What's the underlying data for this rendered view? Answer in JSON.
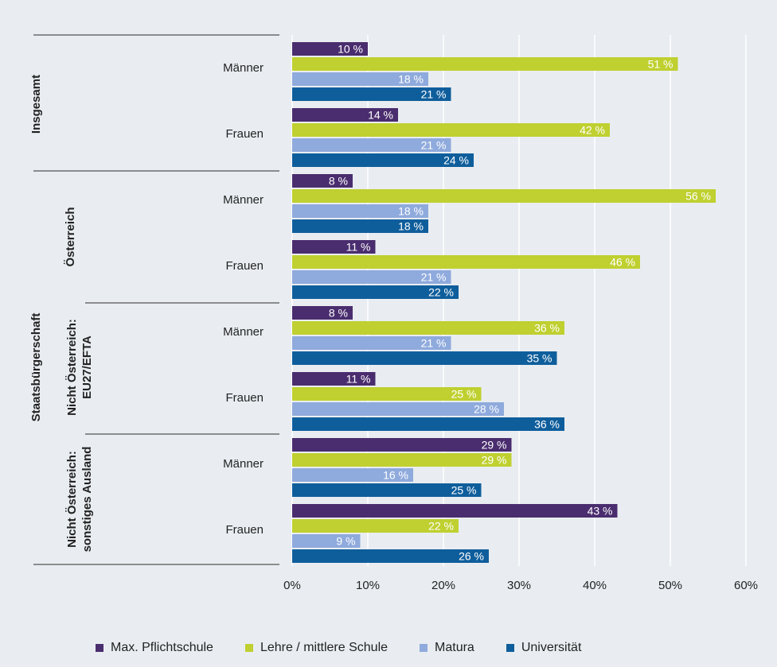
{
  "chart_data": {
    "type": "bar",
    "orientation": "horizontal",
    "title": "",
    "xlabel": "",
    "ylabel": "",
    "xlim": [
      0,
      60
    ],
    "x_ticks": [
      "0%",
      "10%",
      "20%",
      "30%",
      "40%",
      "50%",
      "60%"
    ],
    "grid": true,
    "legend_position": "bottom",
    "outer_group_label": "Staatsbürgerschaft",
    "groups": [
      {
        "label": "Insgesamt"
      },
      {
        "label": "Österreich"
      },
      {
        "label": "Nicht Österreich: EU27/EFTA",
        "label_lines": [
          "Nicht Österreich:",
          "EU27/EFTA"
        ]
      },
      {
        "label": "Nicht Österreich: sonstiges Ausland",
        "label_lines": [
          "Nicht Österreich:",
          "sonstiges Ausland"
        ]
      }
    ],
    "categories": [
      "Insgesamt – Männer",
      "Insgesamt – Frauen",
      "Österreich – Männer",
      "Österreich – Frauen",
      "Nicht Österreich: EU27/EFTA – Männer",
      "Nicht Österreich: EU27/EFTA – Frauen",
      "Nicht Österreich: sonstiges Ausland – Männer",
      "Nicht Österreich: sonstiges Ausland – Frauen"
    ],
    "category_labels": [
      "Männer",
      "Frauen",
      "Männer",
      "Frauen",
      "Männer",
      "Frauen",
      "Männer",
      "Frauen"
    ],
    "series": [
      {
        "name": "Max. Pflichtschule",
        "color": "#4a2d6e",
        "values": [
          10,
          14,
          8,
          11,
          8,
          11,
          29,
          43
        ],
        "labels": [
          "10 %",
          "14 %",
          "8 %",
          "11 %",
          "8 %",
          "11 %",
          "29 %",
          "43 %"
        ]
      },
      {
        "name": "Lehre / mittlere Schule",
        "color": "#bfd030",
        "values": [
          51,
          42,
          56,
          46,
          36,
          25,
          29,
          22
        ],
        "labels": [
          "51 %",
          "42 %",
          "56 %",
          "46 %",
          "36 %",
          "25 %",
          "29 %",
          "22 %"
        ]
      },
      {
        "name": "Matura",
        "color": "#8faadc",
        "values": [
          18,
          21,
          18,
          21,
          21,
          28,
          16,
          9
        ],
        "labels": [
          "18 %",
          "21 %",
          "18 %",
          "21 %",
          "21 %",
          "28 %",
          "16 %",
          "9 %"
        ]
      },
      {
        "name": "Universität",
        "color": "#0f5e9c",
        "values": [
          21,
          24,
          18,
          22,
          35,
          36,
          25,
          26
        ],
        "labels": [
          "21 %",
          "24 %",
          "18 %",
          "22 %",
          "35 %",
          "36 %",
          "25 %",
          "26 %"
        ]
      }
    ]
  }
}
